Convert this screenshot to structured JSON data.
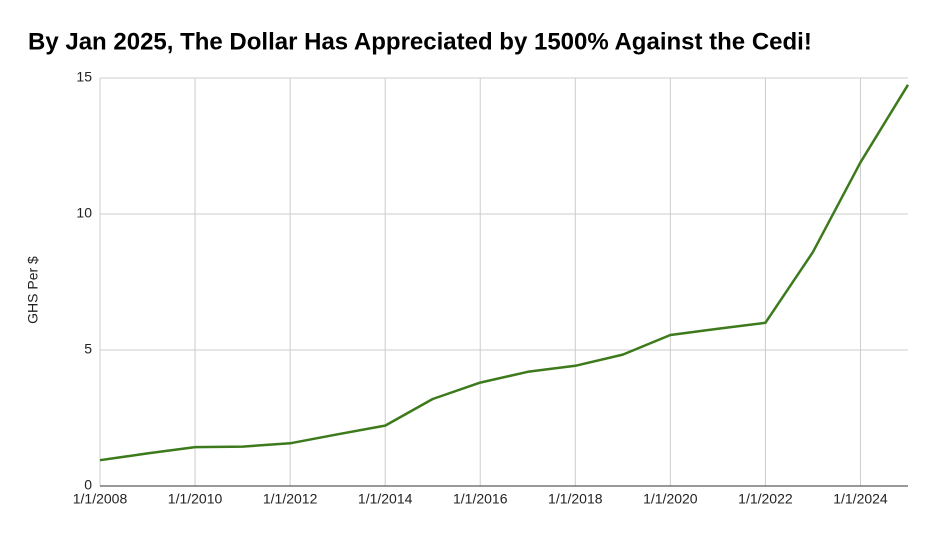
{
  "chart_data": {
    "type": "line",
    "title": "By Jan 2025, The Dollar Has Appreciated by 1500% Against the Cedi!",
    "y_label": "GHS Per $",
    "categories": [
      "1/1/2008",
      null,
      "1/1/2010",
      null,
      "1/1/2012",
      null,
      "1/1/2014",
      null,
      "1/1/2016",
      null,
      "1/1/2018",
      null,
      "1/1/2020",
      null,
      "1/1/2022",
      null,
      "1/1/2024",
      null
    ],
    "series": [
      {
        "name": "GHS Per $",
        "color": "#3d7a1c",
        "values": [
          0.95,
          1.2,
          1.43,
          1.45,
          1.57,
          1.9,
          2.22,
          3.2,
          3.8,
          4.2,
          4.42,
          4.83,
          5.55,
          5.78,
          6.0,
          8.6,
          11.9,
          14.75
        ]
      }
    ],
    "ylim": [
      0,
      15
    ],
    "yticks": [
      0,
      5,
      10,
      15
    ],
    "grid": true
  }
}
